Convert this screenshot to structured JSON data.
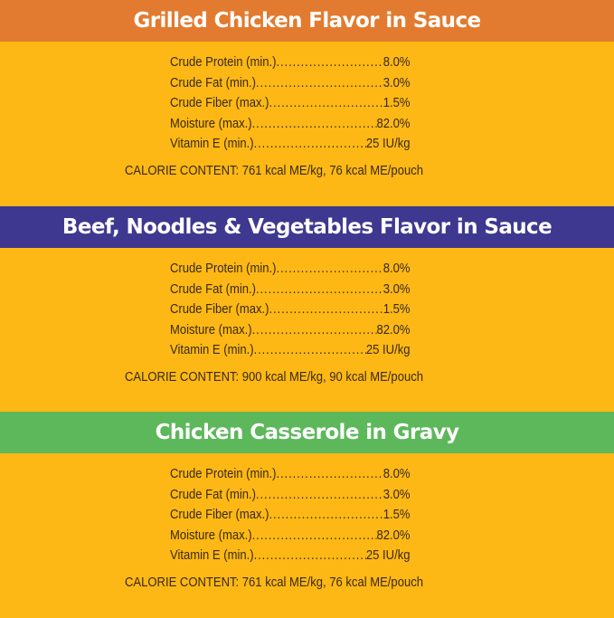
{
  "colors": {
    "background": "#FDB815",
    "orange": "#E27B2F",
    "purple": "#3F3890",
    "green": "#5DB85B"
  },
  "sections": [
    {
      "title": "Grilled Chicken Flavor in Sauce",
      "color": "#E27B2F",
      "rows": [
        {
          "label": "Crude Protein (min.)",
          "value": "8.0%"
        },
        {
          "label": "Crude Fat (min.)",
          "value": "3.0%"
        },
        {
          "label": "Crude Fiber (max.)",
          "value": "1.5%"
        },
        {
          "label": "Moisture (max.)",
          "value": "82.0%"
        },
        {
          "label": "Vitamin E (min.)",
          "value": "25 IU/kg"
        }
      ],
      "calorie": "CALORIE CONTENT: 761 kcal ME/kg, 76 kcal ME/pouch"
    },
    {
      "title": "Beef, Noodles & Vegetables Flavor in Sauce",
      "color": "#3F3890",
      "rows": [
        {
          "label": "Crude Protein (min.)",
          "value": "8.0%"
        },
        {
          "label": "Crude Fat (min.)",
          "value": "3.0%"
        },
        {
          "label": "Crude Fiber (max.)",
          "value": "1.5%"
        },
        {
          "label": "Moisture (max.)",
          "value": "82.0%"
        },
        {
          "label": "Vitamin E (min.)",
          "value": "25 IU/kg"
        }
      ],
      "calorie": "CALORIE CONTENT: 900 kcal ME/kg, 90 kcal ME/pouch"
    },
    {
      "title": "Chicken Casserole in Gravy",
      "color": "#5DB85B",
      "rows": [
        {
          "label": "Crude Protein (min.)",
          "value": "8.0%"
        },
        {
          "label": "Crude Fat (min.)",
          "value": "3.0%"
        },
        {
          "label": "Crude Fiber (max.)",
          "value": "1.5%"
        },
        {
          "label": "Moisture (max.)",
          "value": "82.0%"
        },
        {
          "label": "Vitamin E (min.)",
          "value": "25 IU/kg"
        }
      ],
      "calorie": "CALORIE CONTENT: 761 kcal ME/kg, 76 kcal ME/pouch"
    }
  ]
}
